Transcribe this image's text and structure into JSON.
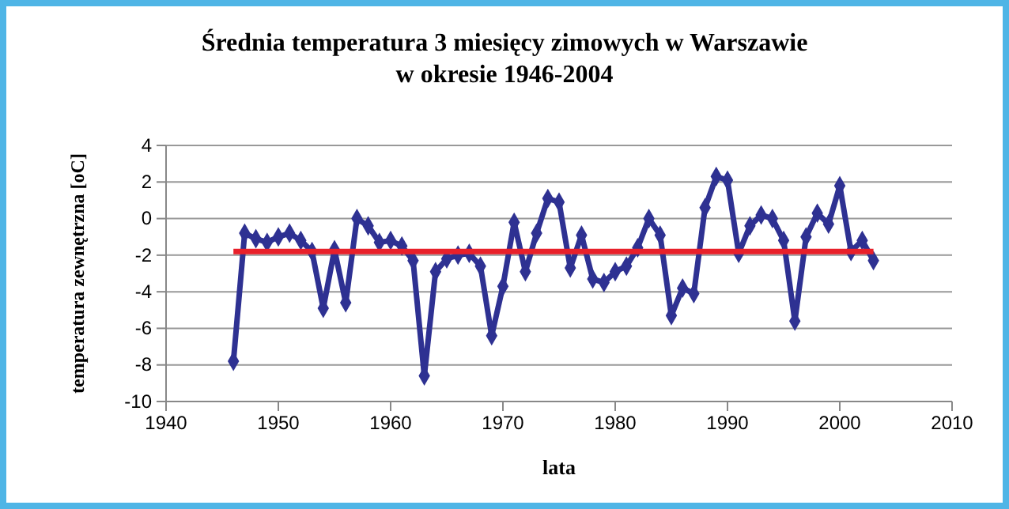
{
  "chart_data": {
    "type": "line",
    "title": "Średnia temperatura 3 miesięcy zimowych w Warszawie",
    "subtitle": "w okresie 1946-2004",
    "xlabel": "lata",
    "ylabel": "temperatura zewnętrzna [oC]",
    "xlim": [
      1940,
      2010
    ],
    "xticks": [
      1940,
      1950,
      1960,
      1970,
      1980,
      1990,
      2000,
      2010
    ],
    "ylim": [
      -10,
      4
    ],
    "yticks": [
      -10,
      -8,
      -6,
      -4,
      -2,
      0,
      2,
      4
    ],
    "grid": "y",
    "series": [
      {
        "color": "#2e3192",
        "marker": "diamond",
        "x": [
          1946,
          1947,
          1948,
          1949,
          1950,
          1951,
          1952,
          1953,
          1954,
          1955,
          1956,
          1957,
          1958,
          1959,
          1960,
          1961,
          1962,
          1963,
          1964,
          1965,
          1966,
          1967,
          1968,
          1969,
          1970,
          1971,
          1972,
          1973,
          1974,
          1975,
          1976,
          1977,
          1978,
          1979,
          1980,
          1981,
          1982,
          1983,
          1984,
          1985,
          1986,
          1987,
          1988,
          1989,
          1990,
          1991,
          1992,
          1993,
          1994,
          1995,
          1996,
          1997,
          1998,
          1999,
          2000,
          2001,
          2002,
          2003
        ],
        "values": [
          -7.8,
          -0.8,
          -1.1,
          -1.3,
          -1.0,
          -0.8,
          -1.2,
          -1.8,
          -4.9,
          -1.7,
          -4.6,
          0.0,
          -0.4,
          -1.3,
          -1.2,
          -1.5,
          -2.3,
          -8.6,
          -2.9,
          -2.2,
          -2.0,
          -1.9,
          -2.6,
          -6.4,
          -3.7,
          -0.2,
          -2.9,
          -0.8,
          1.1,
          0.9,
          -2.7,
          -0.9,
          -3.3,
          -3.5,
          -2.9,
          -2.6,
          -1.6,
          0.0,
          -0.9,
          -5.3,
          -3.8,
          -4.1,
          0.6,
          2.3,
          2.1,
          -1.9,
          -0.4,
          0.2,
          0.0,
          -1.2,
          -5.6,
          -1.0,
          0.3,
          -0.3,
          1.8,
          -1.8,
          -1.2,
          -2.3
        ]
      },
      {
        "color": "#e8202a",
        "marker": "none",
        "x": [
          1946,
          2003
        ],
        "values": [
          -1.8,
          -1.8
        ]
      }
    ]
  }
}
